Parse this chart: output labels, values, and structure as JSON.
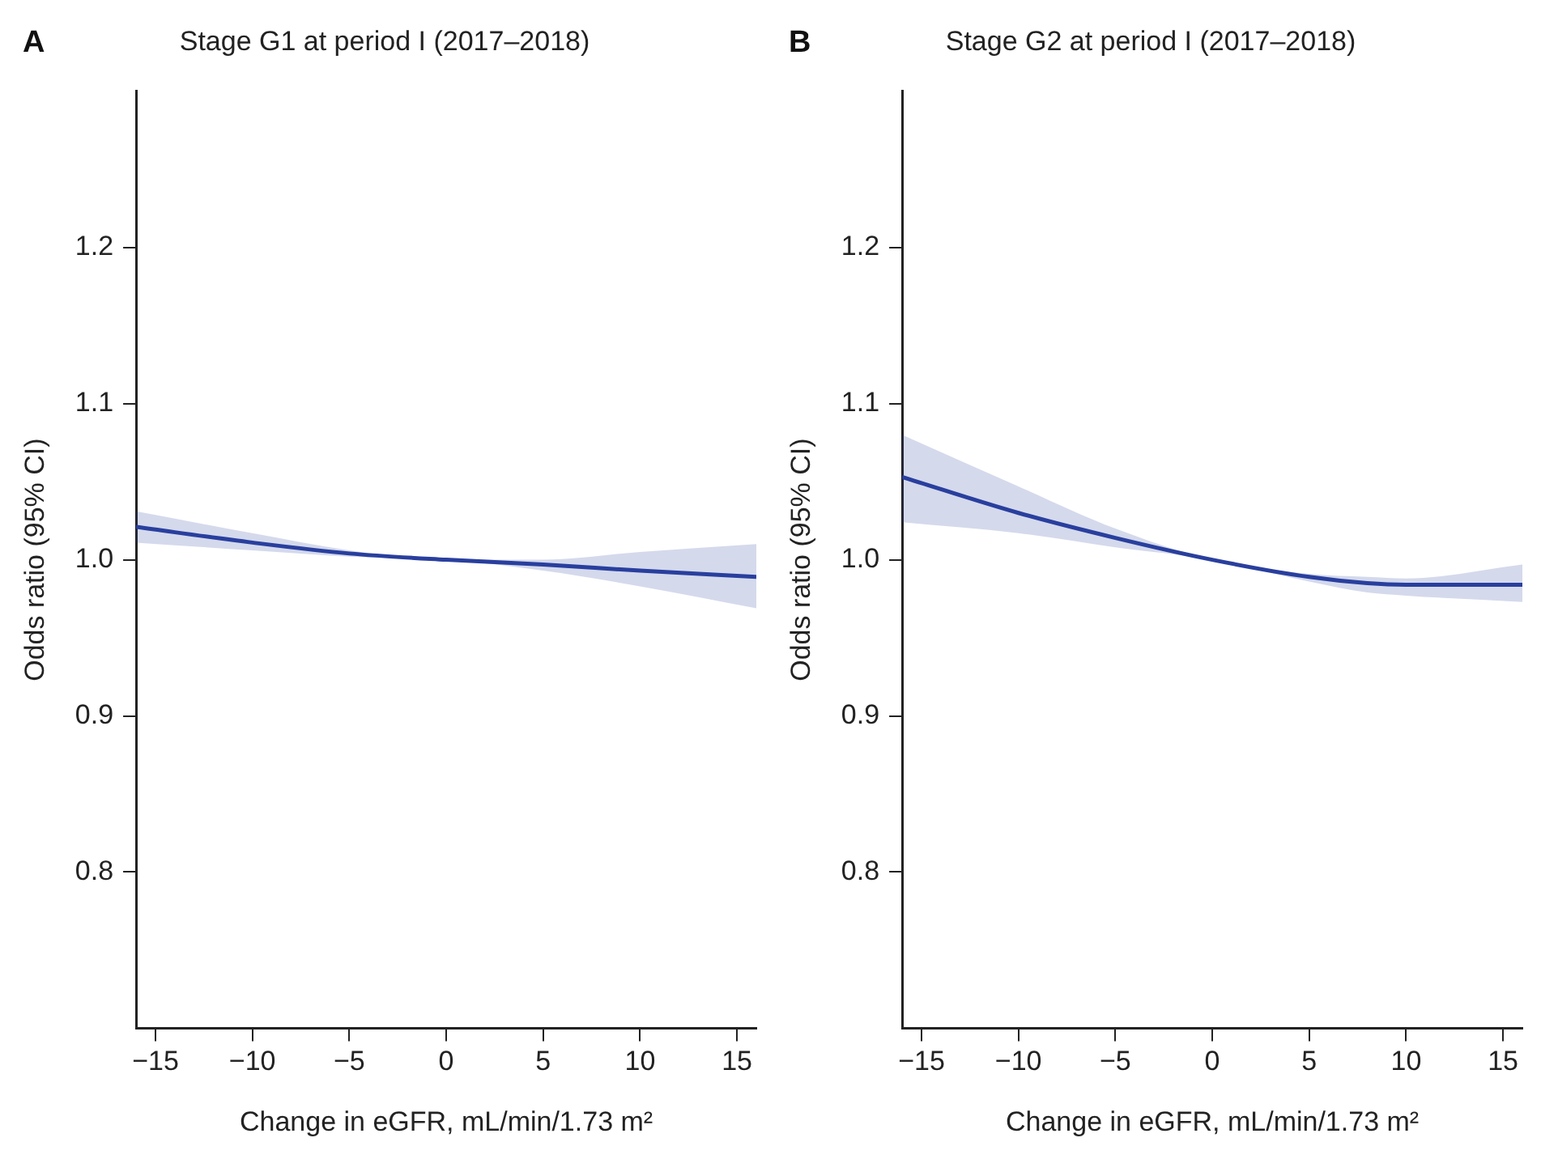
{
  "chart_data": [
    {
      "type": "line",
      "title": "Stage G1 at period I (2017–2018)",
      "annotations": [
        "A"
      ],
      "xlabel": "Change in eGFR, mL/min/1.73 m²",
      "ylabel": "Odds ratio (95% CI)",
      "x": [
        -16,
        -10,
        -5,
        0,
        5,
        10,
        16
      ],
      "series": [
        {
          "color": "#2a3f9e",
          "values": [
            1.021,
            1.011,
            1.004,
            1.0,
            0.997,
            0.993,
            0.989
          ],
          "lower": [
            1.011,
            1.006,
            1.002,
            1.0,
            0.993,
            0.983,
            0.969
          ],
          "upper": [
            1.031,
            1.017,
            1.006,
            1.0,
            1.0,
            1.005,
            1.01
          ]
        }
      ],
      "xlim": [
        -16,
        16
      ],
      "xticks": [
        {
          "value": -15,
          "label": "−15"
        },
        {
          "value": -10,
          "label": "−10"
        },
        {
          "value": -5,
          "label": "−5"
        },
        0,
        5,
        10,
        15
      ],
      "ylim": [
        0.7,
        1.3
      ],
      "yticks": [
        0.8,
        0.9,
        {
          "value": 1,
          "label": "1.0"
        },
        1.1,
        1.2
      ],
      "grid": false,
      "legend": false
    },
    {
      "type": "line",
      "title": "Stage G2 at period I (2017–2018)",
      "annotations": [
        "B"
      ],
      "xlabel": "Change in eGFR, mL/min/1.73 m²",
      "ylabel": "Odds ratio (95% CI)",
      "x": [
        -16,
        -10,
        -5,
        0,
        5,
        8,
        10,
        16
      ],
      "series": [
        {
          "color": "#2a3f9e",
          "values": [
            1.053,
            1.03,
            1.014,
            1.0,
            0.989,
            0.985,
            0.984,
            0.984
          ],
          "lower": [
            1.024,
            1.017,
            1.008,
            1.0,
            0.986,
            0.979,
            0.977,
            0.973
          ],
          "upper": [
            1.08,
            1.047,
            1.02,
            1.0,
            0.991,
            0.989,
            0.988,
            0.997
          ]
        }
      ],
      "xlim": [
        -16,
        16
      ],
      "xticks": [
        {
          "value": -15,
          "label": "−15"
        },
        {
          "value": -10,
          "label": "−10"
        },
        {
          "value": -5,
          "label": "−5"
        },
        0,
        5,
        10,
        15
      ],
      "ylim": [
        0.7,
        1.3
      ],
      "yticks": [
        0.8,
        0.9,
        {
          "value": 1,
          "label": "1.0"
        },
        1.1,
        1.2
      ],
      "grid": false,
      "legend": false
    }
  ]
}
